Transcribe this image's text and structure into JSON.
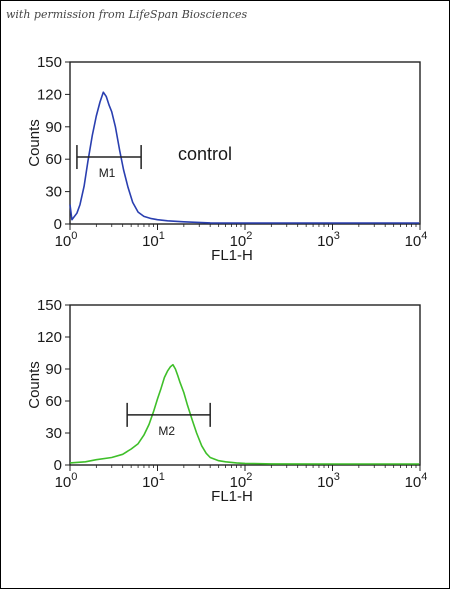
{
  "watermark": "with permission from LifeSpan Biosciences",
  "chart_data": [
    {
      "type": "line",
      "title": "",
      "xlabel": "FL1-H",
      "ylabel": "Counts",
      "x_scale": "log",
      "xlim": [
        1,
        10000
      ],
      "ylim": [
        0,
        150
      ],
      "y_ticks": [
        "0",
        "30",
        "60",
        "90",
        "120",
        "150"
      ],
      "x_ticks": [
        {
          "base": "10",
          "exp": "0"
        },
        {
          "base": "10",
          "exp": "1"
        },
        {
          "base": "10",
          "exp": "2"
        },
        {
          "base": "10",
          "exp": "3"
        },
        {
          "base": "10",
          "exp": "4"
        }
      ],
      "annotation": "control",
      "marker": {
        "label": "M1",
        "range": [
          1.2,
          6.5
        ],
        "y": 62
      },
      "series": [
        {
          "color": "#2a3fb0",
          "x": [
            1,
            1.05,
            1.1,
            1.2,
            1.3,
            1.45,
            1.6,
            1.8,
            2.0,
            2.2,
            2.4,
            2.6,
            2.8,
            3.0,
            3.3,
            3.7,
            4.1,
            4.6,
            5.2,
            6.0,
            7.0,
            8.5,
            10,
            13,
            20,
            40,
            100,
            1000,
            10000
          ],
          "y": [
            18,
            4,
            6,
            10,
            18,
            35,
            58,
            82,
            100,
            113,
            122,
            118,
            110,
            104,
            90,
            68,
            50,
            34,
            20,
            11,
            7,
            5,
            4,
            3,
            2,
            1,
            0.5,
            0,
            0
          ]
        }
      ]
    },
    {
      "type": "line",
      "title": "",
      "xlabel": "FL1-H",
      "ylabel": "Counts",
      "x_scale": "log",
      "xlim": [
        1,
        10000
      ],
      "ylim": [
        0,
        150
      ],
      "y_ticks": [
        "0",
        "30",
        "60",
        "90",
        "120",
        "150"
      ],
      "x_ticks": [
        {
          "base": "10",
          "exp": "0"
        },
        {
          "base": "10",
          "exp": "1"
        },
        {
          "base": "10",
          "exp": "2"
        },
        {
          "base": "10",
          "exp": "3"
        },
        {
          "base": "10",
          "exp": "4"
        }
      ],
      "annotation": "",
      "marker": {
        "label": "M2",
        "range": [
          4.5,
          40
        ],
        "y": 47
      },
      "series": [
        {
          "color": "#3fbf2a",
          "x": [
            1,
            1.5,
            2,
            3,
            4,
            5,
            6,
            7,
            8,
            9,
            10,
            11,
            12,
            13,
            14,
            15,
            16,
            17,
            18,
            20,
            22,
            25,
            28,
            32,
            36,
            40,
            50,
            60,
            80,
            100,
            200,
            1000,
            10000
          ],
          "y": [
            2,
            3,
            5,
            7,
            10,
            15,
            20,
            28,
            38,
            50,
            62,
            72,
            82,
            88,
            92,
            94,
            90,
            84,
            78,
            68,
            56,
            42,
            30,
            18,
            11,
            7,
            4,
            3,
            2,
            1.5,
            1,
            0.5,
            0
          ]
        }
      ]
    }
  ]
}
